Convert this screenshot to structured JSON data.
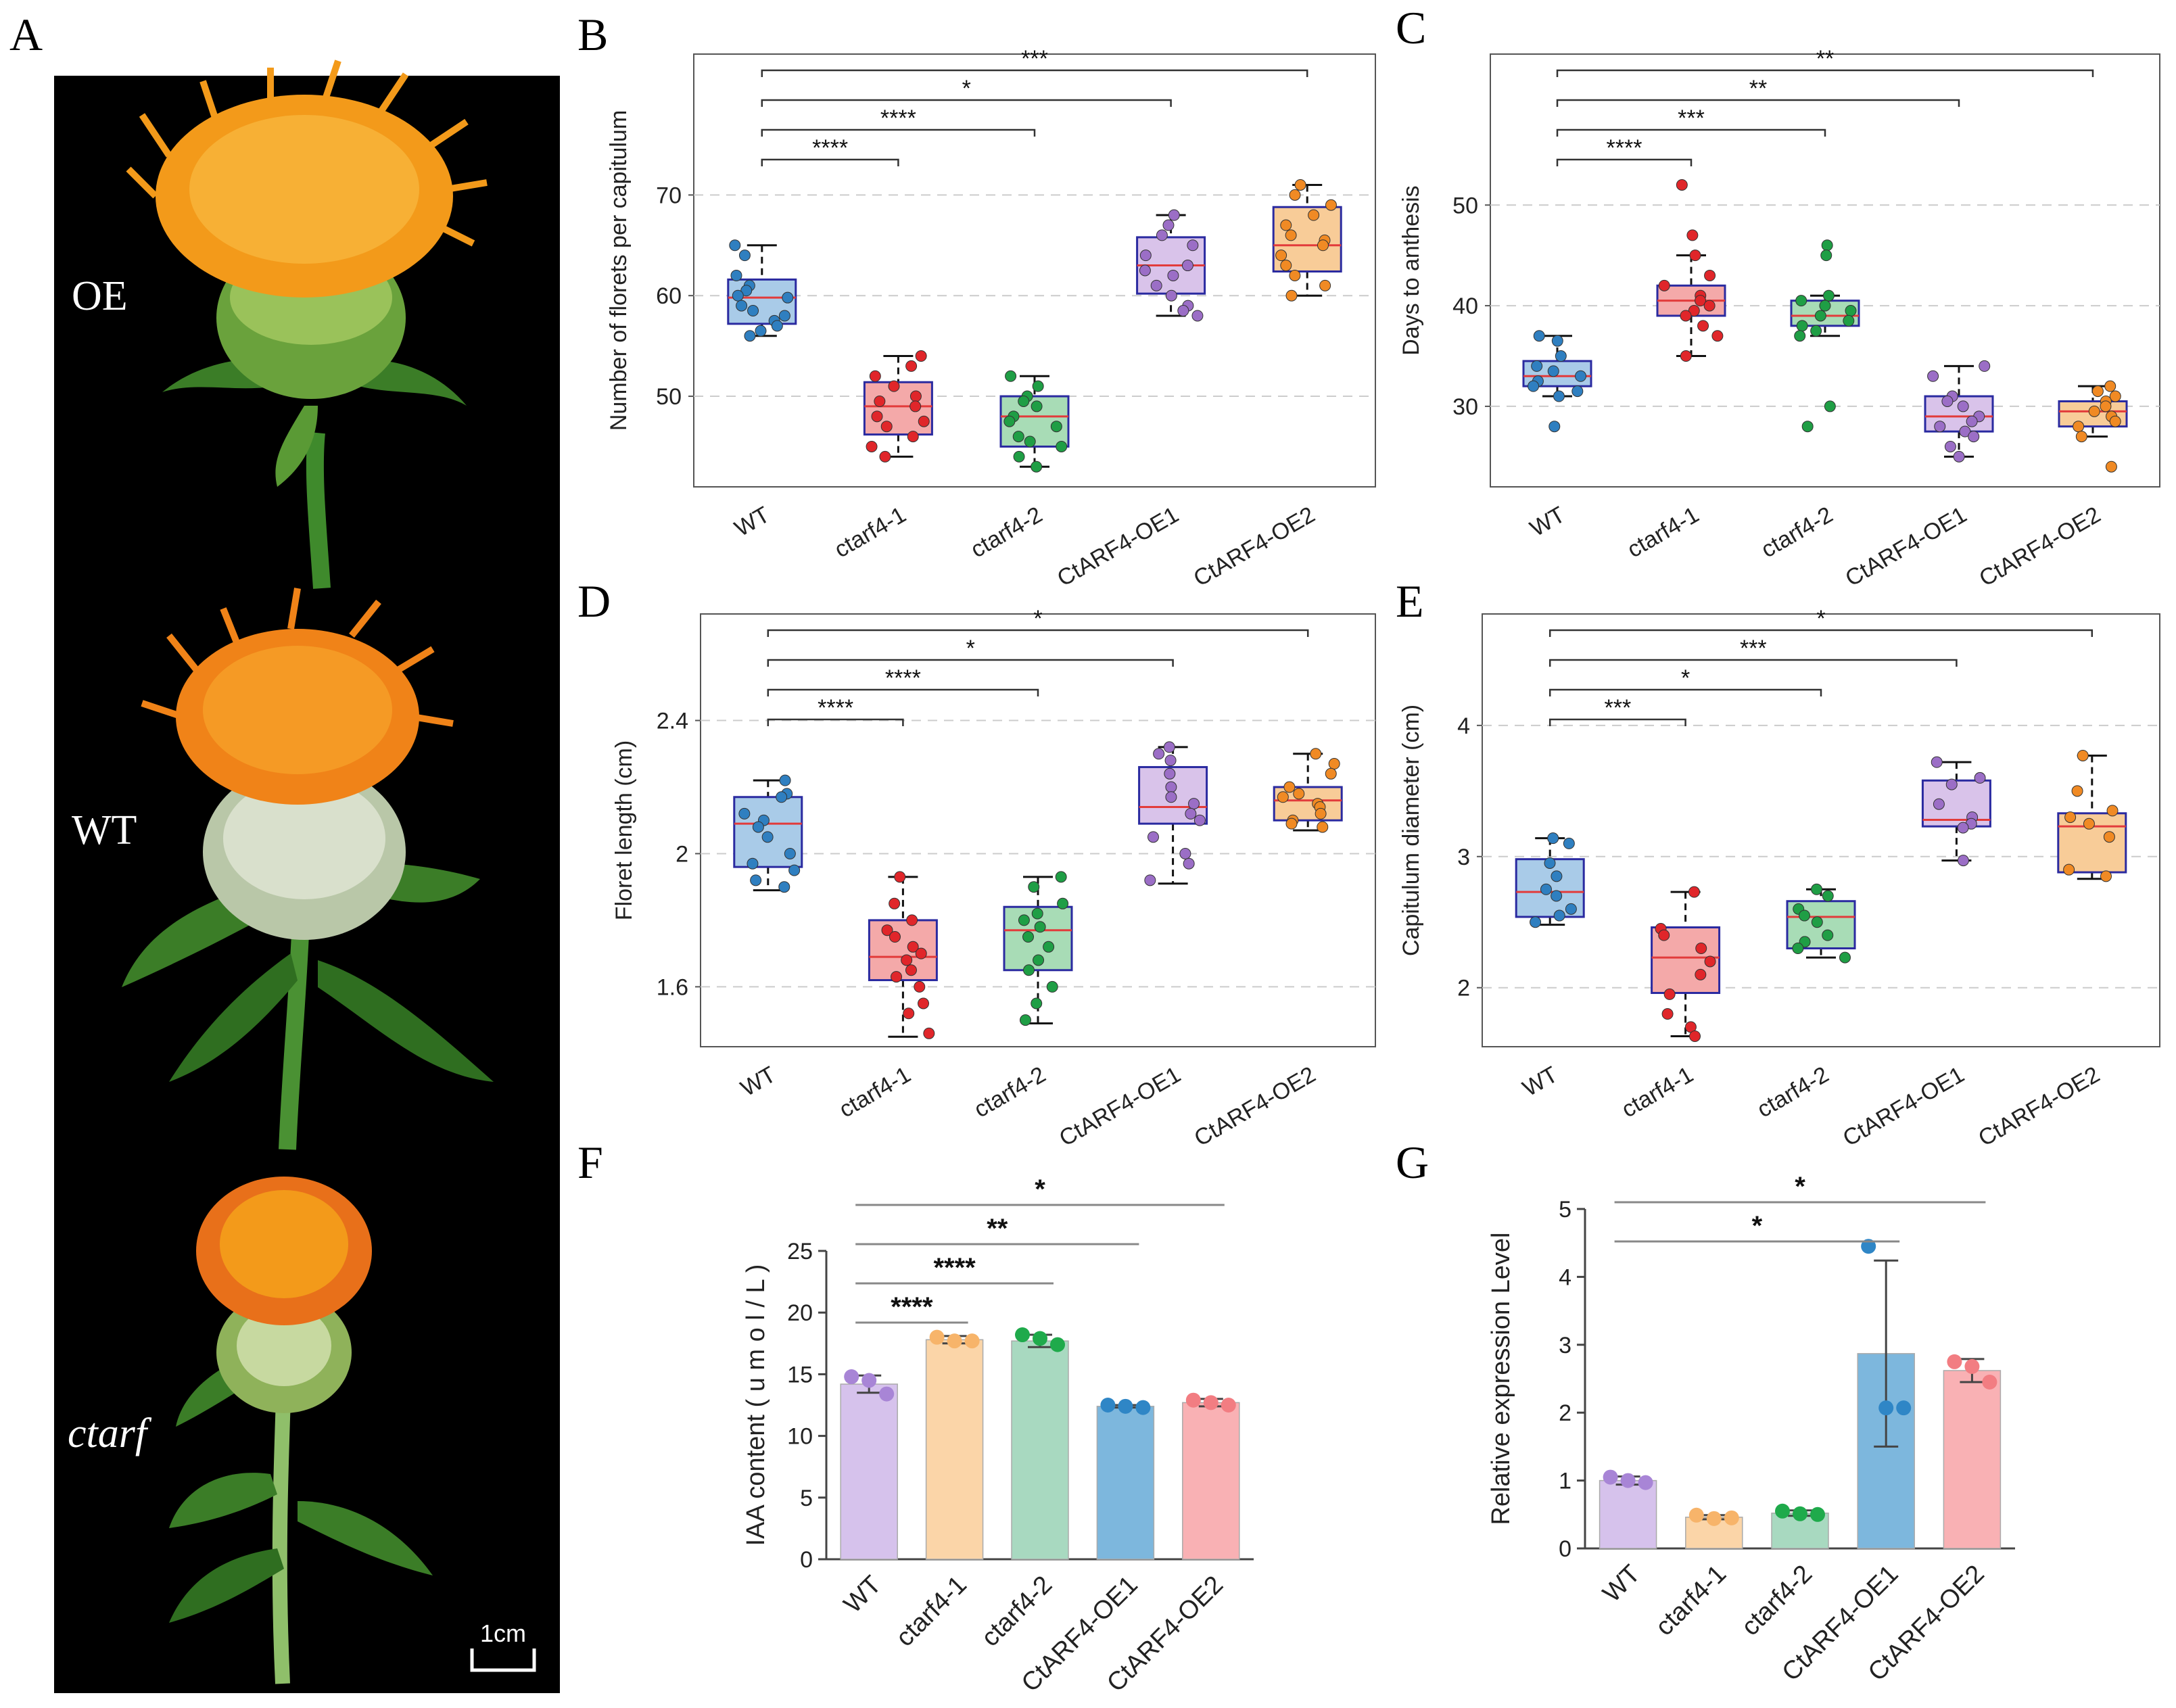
{
  "panels": {
    "A": "A",
    "B": "B",
    "C": "C",
    "D": "D",
    "E": "E",
    "F": "F",
    "G": "G"
  },
  "photo": {
    "labels": [
      "OE",
      "WT",
      "ctarf"
    ],
    "scale_bar": "1cm",
    "background": "#000000",
    "petal_color": "#f39a1a",
    "bract_color": "#4f8a2e"
  },
  "group_colors": [
    "#2f7fc0",
    "#e0262a",
    "#1f9e45",
    "#9b6ec6",
    "#f08a24"
  ],
  "box_fills": [
    "#a9cbe8",
    "#f4a9a9",
    "#a8dcb6",
    "#d9c3ea",
    "#f8cc98"
  ],
  "bar_fills": [
    "#d6c2ec",
    "#fbd5a8",
    "#a8d9c0",
    "#7db7dd",
    "#f9b1b4"
  ],
  "bar_dots": [
    "#a885d6",
    "#f7b46a",
    "#1faa4b",
    "#2f86c6",
    "#f27d82"
  ],
  "chart_data": [
    {
      "panel": "B",
      "type": "box",
      "ylabel": "Number of florets per capitulum",
      "categories": [
        "WT",
        "ctarf4-1",
        "ctarf4-2",
        "CtARF4-OE1",
        "CtARF4-OE2"
      ],
      "ylim": [
        41,
        84
      ],
      "yticks": [
        50,
        60,
        70
      ],
      "grid": true,
      "boxes": [
        {
          "min": 56,
          "q1": 57.2,
          "median": 59.8,
          "q3": 61.6,
          "max": 65
        },
        {
          "min": 44,
          "q1": 46.2,
          "median": 49,
          "q3": 51.4,
          "max": 54
        },
        {
          "min": 43,
          "q1": 45,
          "median": 48,
          "q3": 50,
          "max": 52
        },
        {
          "min": 58,
          "q1": 60.2,
          "median": 63,
          "q3": 65.8,
          "max": 68
        },
        {
          "min": 60,
          "q1": 62.4,
          "median": 65,
          "q3": 68.8,
          "max": 71
        }
      ],
      "points": [
        [
          65,
          64,
          62,
          61,
          60.5,
          60,
          59.8,
          59,
          58.5,
          58,
          57.5,
          57,
          56.5,
          56
        ],
        [
          54,
          53,
          52,
          51,
          50,
          49.5,
          49,
          48,
          47.5,
          47,
          46,
          45,
          44
        ],
        [
          52,
          51,
          50,
          49.5,
          49,
          48,
          47.5,
          47,
          46,
          45.5,
          45,
          44,
          43
        ],
        [
          68,
          67,
          66,
          65,
          64,
          63,
          62.5,
          62,
          61,
          60,
          59,
          58.5,
          58
        ],
        [
          71,
          70,
          69,
          68,
          67,
          66,
          65.5,
          65,
          64,
          63,
          62,
          61,
          60
        ]
      ],
      "significance": [
        {
          "from": 0,
          "to": 1,
          "label": "****"
        },
        {
          "from": 0,
          "to": 2,
          "label": "****"
        },
        {
          "from": 0,
          "to": 3,
          "label": "*"
        },
        {
          "from": 0,
          "to": 4,
          "label": "***"
        }
      ]
    },
    {
      "panel": "C",
      "type": "box",
      "ylabel": "Days to anthesis",
      "categories": [
        "WT",
        "ctarf4-1",
        "ctarf4-2",
        "CtARF4-OE1",
        "CtARF4-OE2"
      ],
      "ylim": [
        22,
        65
      ],
      "yticks": [
        30,
        40,
        50
      ],
      "grid": true,
      "boxes": [
        {
          "min": 31,
          "q1": 32,
          "median": 33,
          "q3": 34.5,
          "max": 37
        },
        {
          "min": 35,
          "q1": 39,
          "median": 40.5,
          "q3": 42,
          "max": 45
        },
        {
          "min": 37,
          "q1": 38,
          "median": 39,
          "q3": 40.5,
          "max": 41
        },
        {
          "min": 25,
          "q1": 27.5,
          "median": 29,
          "q3": 31,
          "max": 34
        },
        {
          "min": 27,
          "q1": 28,
          "median": 29.5,
          "q3": 30.5,
          "max": 32
        }
      ],
      "points": [
        [
          37,
          36.5,
          35,
          34,
          33.5,
          33,
          32.5,
          32,
          31.5,
          31,
          28
        ],
        [
          52,
          47,
          45,
          43,
          42,
          41,
          40.5,
          40,
          39.5,
          39,
          38,
          37,
          35
        ],
        [
          46,
          45,
          41,
          40.5,
          40,
          39.5,
          39,
          38.5,
          38,
          37.5,
          37,
          30,
          28
        ],
        [
          34,
          33,
          31,
          30.5,
          30,
          29,
          28.5,
          28,
          27.5,
          27,
          26,
          25
        ],
        [
          32,
          31.5,
          31,
          30.5,
          30,
          29.5,
          29,
          28.5,
          28,
          27,
          24
        ]
      ],
      "significance": [
        {
          "from": 0,
          "to": 1,
          "label": "****"
        },
        {
          "from": 0,
          "to": 2,
          "label": "***"
        },
        {
          "from": 0,
          "to": 3,
          "label": "**"
        },
        {
          "from": 0,
          "to": 4,
          "label": "**"
        }
      ]
    },
    {
      "panel": "D",
      "type": "box",
      "ylabel": "Floret length (cm)",
      "categories": [
        "WT",
        "ctarf4-1",
        "ctarf4-2",
        "CtARF4-OE1",
        "CtARF4-OE2"
      ],
      "ylim": [
        1.42,
        2.72
      ],
      "yticks": [
        1.6,
        2,
        2.4
      ],
      "ytick_labels": [
        "1.6",
        "2",
        "2.4"
      ],
      "grid": true,
      "boxes": [
        {
          "min": 1.89,
          "q1": 1.96,
          "median": 2.09,
          "q3": 2.17,
          "max": 2.22
        },
        {
          "min": 1.45,
          "q1": 1.62,
          "median": 1.69,
          "q3": 1.8,
          "max": 1.93
        },
        {
          "min": 1.49,
          "q1": 1.65,
          "median": 1.77,
          "q3": 1.84,
          "max": 1.93
        },
        {
          "min": 1.91,
          "q1": 2.09,
          "median": 2.14,
          "q3": 2.26,
          "max": 2.32
        },
        {
          "min": 2.07,
          "q1": 2.1,
          "median": 2.16,
          "q3": 2.2,
          "max": 2.3
        }
      ],
      "points": [
        [
          2.22,
          2.18,
          2.17,
          2.12,
          2.1,
          2.08,
          2.05,
          2.0,
          1.97,
          1.95,
          1.92,
          1.9
        ],
        [
          1.93,
          1.85,
          1.8,
          1.77,
          1.75,
          1.72,
          1.7,
          1.68,
          1.65,
          1.63,
          1.6,
          1.55,
          1.52,
          1.46
        ],
        [
          1.93,
          1.9,
          1.85,
          1.82,
          1.8,
          1.78,
          1.75,
          1.72,
          1.68,
          1.65,
          1.6,
          1.55,
          1.5
        ],
        [
          2.32,
          2.3,
          2.28,
          2.24,
          2.2,
          2.17,
          2.15,
          2.12,
          2.1,
          2.05,
          2.0,
          1.97,
          1.92
        ],
        [
          2.3,
          2.27,
          2.24,
          2.2,
          2.18,
          2.17,
          2.15,
          2.14,
          2.12,
          2.1,
          2.09,
          2.08
        ]
      ],
      "significance": [
        {
          "from": 0,
          "to": 1,
          "label": "****"
        },
        {
          "from": 0,
          "to": 2,
          "label": "****"
        },
        {
          "from": 0,
          "to": 3,
          "label": "*"
        },
        {
          "from": 0,
          "to": 4,
          "label": "*"
        }
      ]
    },
    {
      "panel": "E",
      "type": "box",
      "ylabel": "Capitulum diameter (cm)",
      "categories": [
        "WT",
        "ctarf4-1",
        "ctarf4-2",
        "CtARF4-OE1",
        "CtARF4-OE2"
      ],
      "ylim": [
        1.55,
        4.85
      ],
      "yticks": [
        2,
        3,
        4
      ],
      "grid": true,
      "boxes": [
        {
          "min": 2.48,
          "q1": 2.54,
          "median": 2.73,
          "q3": 2.98,
          "max": 3.14
        },
        {
          "min": 1.63,
          "q1": 1.96,
          "median": 2.23,
          "q3": 2.46,
          "max": 2.73
        },
        {
          "min": 2.23,
          "q1": 2.3,
          "median": 2.54,
          "q3": 2.66,
          "max": 2.75
        },
        {
          "min": 2.97,
          "q1": 3.23,
          "median": 3.28,
          "q3": 3.58,
          "max": 3.72
        },
        {
          "min": 2.83,
          "q1": 2.88,
          "median": 3.23,
          "q3": 3.33,
          "max": 3.77
        }
      ],
      "points": [
        [
          3.14,
          3.1,
          2.95,
          2.85,
          2.75,
          2.7,
          2.6,
          2.55,
          2.5
        ],
        [
          2.73,
          2.45,
          2.4,
          2.3,
          2.2,
          2.1,
          1.95,
          1.8,
          1.7,
          1.63
        ],
        [
          2.75,
          2.7,
          2.6,
          2.55,
          2.5,
          2.4,
          2.35,
          2.3,
          2.23
        ],
        [
          3.72,
          3.6,
          3.55,
          3.4,
          3.3,
          3.25,
          3.22,
          2.97
        ],
        [
          3.77,
          3.5,
          3.35,
          3.3,
          3.25,
          3.15,
          2.9,
          2.85
        ]
      ],
      "significance": [
        {
          "from": 0,
          "to": 1,
          "label": "***"
        },
        {
          "from": 0,
          "to": 2,
          "label": "*"
        },
        {
          "from": 0,
          "to": 3,
          "label": "***"
        },
        {
          "from": 0,
          "to": 4,
          "label": "*"
        }
      ]
    },
    {
      "panel": "F",
      "type": "bar",
      "ylabel": "IAA content ( u m o l / L )",
      "categories": [
        "WT",
        "ctarf4-1",
        "ctarf4-2",
        "CtARF4-OE1",
        "CtARF4-OE2"
      ],
      "ylim": [
        0,
        25
      ],
      "yticks": [
        0,
        5,
        10,
        15,
        20,
        25
      ],
      "values": [
        14.2,
        17.8,
        17.7,
        12.4,
        12.7
      ],
      "errors": [
        0.7,
        0.3,
        0.5,
        0.1,
        0.3
      ],
      "points": [
        [
          14.8,
          14.5,
          13.4
        ],
        [
          18.0,
          17.7,
          17.7
        ],
        [
          18.2,
          17.9,
          17.4
        ],
        [
          12.5,
          12.4,
          12.3
        ],
        [
          12.9,
          12.7,
          12.5
        ]
      ],
      "significance": [
        {
          "from": 0,
          "to": 1,
          "label": "****"
        },
        {
          "from": 0,
          "to": 2,
          "label": "****"
        },
        {
          "from": 0,
          "to": 3,
          "label": "**"
        },
        {
          "from": 0,
          "to": 4,
          "label": "*"
        }
      ]
    },
    {
      "panel": "G",
      "type": "bar",
      "ylabel": "Relative expression Level",
      "categories": [
        "WT",
        "ctarf4-1",
        "ctarf4-2",
        "CtARF4-OE1",
        "CtARF4-OE2"
      ],
      "ylim": [
        0,
        5
      ],
      "yticks": [
        0,
        1,
        2,
        3,
        4,
        5
      ],
      "values": [
        1.0,
        0.46,
        0.52,
        2.87,
        2.62
      ],
      "errors": [
        0.06,
        0.03,
        0.04,
        1.37,
        0.17
      ],
      "points": [
        [
          1.05,
          1.0,
          0.97
        ],
        [
          0.49,
          0.44,
          0.45
        ],
        [
          0.55,
          0.51,
          0.5
        ],
        [
          4.45,
          2.07,
          2.07
        ],
        [
          2.75,
          2.68,
          2.45
        ]
      ],
      "significance": [
        {
          "from": 0,
          "to": 3,
          "label": "*"
        },
        {
          "from": 0,
          "to": 4,
          "label": "*"
        }
      ]
    }
  ]
}
